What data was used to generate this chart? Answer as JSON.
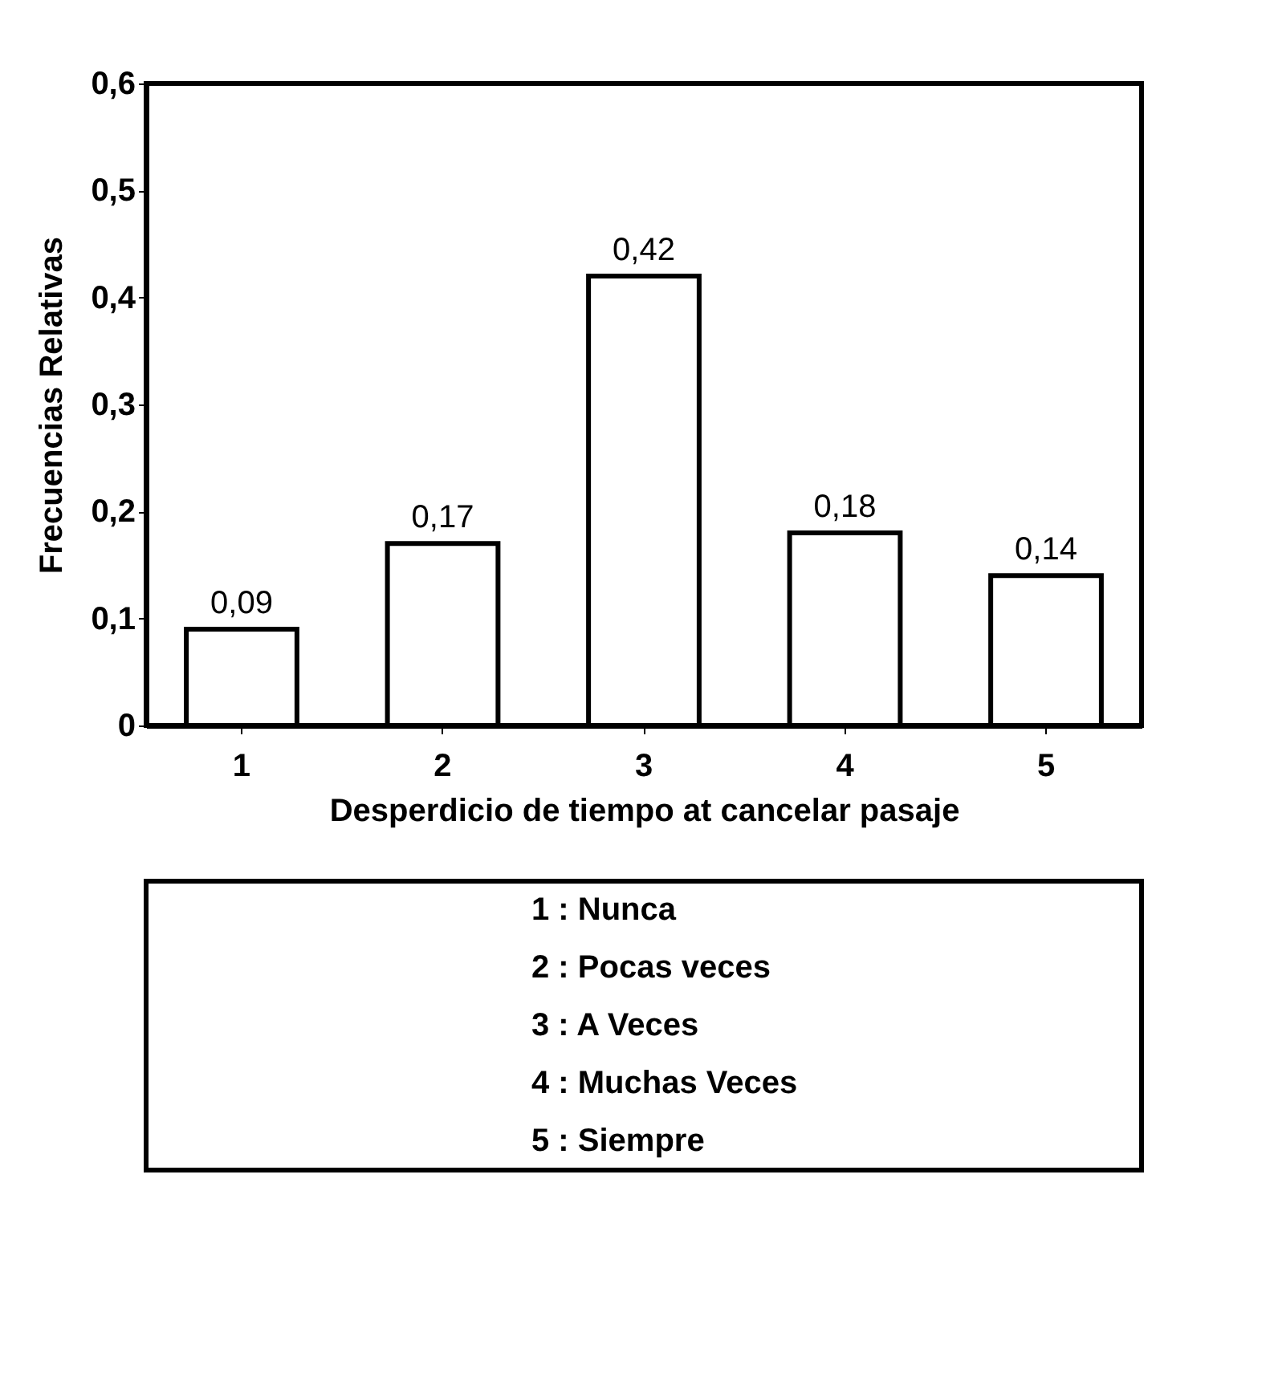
{
  "chart_data": {
    "type": "bar",
    "xlabel": "Desperdicio de tiempo at cancelar pasaje",
    "ylabel": "Frecuencias Relativas",
    "categories": [
      "1",
      "2",
      "3",
      "4",
      "5"
    ],
    "values": [
      0.09,
      0.17,
      0.42,
      0.18,
      0.14
    ],
    "value_labels": [
      "0,09",
      "0,17",
      "0,42",
      "0,18",
      "0,14"
    ],
    "color": "#ffffff",
    "ylim": [
      0,
      0.6
    ],
    "yticks": [
      0,
      {
        "value": 0.1,
        "label": "0,1"
      },
      {
        "value": 0.2,
        "label": "0,2"
      },
      {
        "value": 0.3,
        "label": "0,3"
      },
      {
        "value": 0.4,
        "label": "0,4"
      },
      {
        "value": 0.5,
        "label": "0,5"
      },
      {
        "value": 0.6,
        "label": "0,6"
      }
    ],
    "grid": false,
    "annotations": [
      "1 :  Nunca",
      "2 :  Pocas veces",
      "3 :  A Veces",
      "4 :  Muchas Veces",
      "5 :  Siempre"
    ]
  }
}
